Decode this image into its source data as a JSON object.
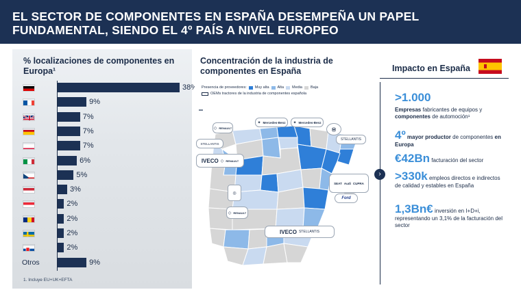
{
  "header": {
    "title_line1": "EL SECTOR DE COMPONENTES EN ESPAÑA DESEMPEÑA UN PAPEL",
    "title_line2": "FUNDAMENTAL, SIENDO EL 4º PAÍS A NIVEL EUROPEO"
  },
  "left": {
    "title": "% localizaciones de componentes en Europa¹",
    "footnote": "1. Incluye EU+UK+EFTA"
  },
  "chart_data": {
    "type": "bar",
    "orientation": "horizontal",
    "title": "% localizaciones de componentes en Europa¹",
    "categories": [
      "Alemania",
      "Francia",
      "Reino Unido",
      "España",
      "Polonia",
      "Italia",
      "República Checa",
      "Hungría",
      "Austria",
      "Rumanía",
      "Suecia",
      "Eslovaquia",
      "Otros"
    ],
    "values": [
      38,
      9,
      7,
      7,
      7,
      6,
      5,
      3,
      2,
      2,
      2,
      2,
      9
    ],
    "value_labels": [
      "38%",
      "9%",
      "7%",
      "7%",
      "7%",
      "6%",
      "5%",
      "3%",
      "2%",
      "2%",
      "2%",
      "2%",
      "9%"
    ],
    "otros_label": "Otros",
    "bar_color": "#1c3154"
  },
  "middle": {
    "title": "Concentración de la industria de componentes en España",
    "legend_title": "Presencia de proveedores:",
    "legend": [
      {
        "label": "Muy alta",
        "color": "#2f7fd8"
      },
      {
        "label": "Alta",
        "color": "#8db9e8"
      },
      {
        "label": "Media",
        "color": "#c9daf0"
      },
      {
        "label": "Baja",
        "color": "#d6d6d6"
      }
    ],
    "oem_legend": "OEMs tractores de la industria de componentes española",
    "logos": {
      "renault": "RENAULT",
      "mercedes": "Mercedes-Benz",
      "stellantis": "STELLANTIS",
      "iveco": "IVECO",
      "seat": "SEAT",
      "cupra": "CUPRA",
      "audi": "Audi",
      "ford": "Ford"
    }
  },
  "right": {
    "title": "Impacto en España",
    "stat1_big": ">1.000",
    "stat1_a": "Empresas",
    "stat1_b": " fabricantes de equipos y ",
    "stat1_c": "componentes",
    "stat1_d": " de automoción¹",
    "stat2_big": "4º",
    "stat2_a": " mayor productor",
    "stat2_b": " de componentes ",
    "stat2_c": "en Europa",
    "stat3_big": "€42Bn",
    "stat3_text": " facturación del sector",
    "stat4_big": ">330k",
    "stat4_text": " empleos directos e indirectos de calidad y estables en España",
    "stat5_big": "1,3Bn€",
    "stat5_text": " inversión en I+D+i, representando un 3,1% de la facturación del sector",
    "arrow": "›"
  }
}
